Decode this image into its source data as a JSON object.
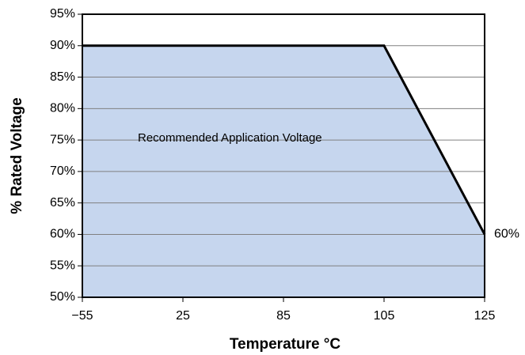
{
  "chart_data": {
    "type": "area",
    "x_label": "Temperature °C",
    "y_label": "% Rated Voltage",
    "annotation": "Recommended Application Voltage",
    "categories": [
      "−55",
      "25",
      "85",
      "105",
      "125"
    ],
    "values": [
      90,
      90,
      90,
      90,
      60
    ],
    "value_labels": [
      null,
      null,
      null,
      null,
      "60%"
    ],
    "color": "#c6d6ee",
    "line_color": "#000000",
    "ylim": [
      50,
      95
    ],
    "yticks": [
      {
        "value": 50,
        "label": "50%"
      },
      {
        "value": 55,
        "label": "55%"
      },
      {
        "value": 60,
        "label": "60%"
      },
      {
        "value": 65,
        "label": "65%"
      },
      {
        "value": 70,
        "label": "70%"
      },
      {
        "value": 75,
        "label": "75%"
      },
      {
        "value": 80,
        "label": "80%"
      },
      {
        "value": 85,
        "label": "85%"
      },
      {
        "value": 90,
        "label": "90%"
      },
      {
        "value": 95,
        "label": "95%"
      }
    ],
    "grid": true
  }
}
